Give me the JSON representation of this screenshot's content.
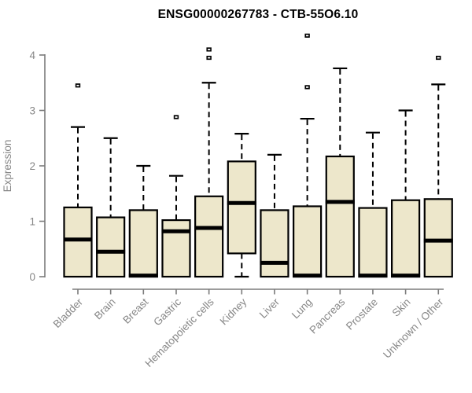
{
  "chart_data": {
    "type": "boxplot",
    "title": "ENSG00000267783 - CTB-55O6.10",
    "ylabel": "Expression",
    "ylim": [
      0,
      4
    ],
    "yticks": [
      0,
      1,
      2,
      3,
      4
    ],
    "grid": false,
    "legend": "none",
    "categories": [
      "Bladder",
      "Brain",
      "Breast",
      "Gastric",
      "Hematopoietic cells",
      "Kidney",
      "Liver",
      "Lung",
      "Pancreas",
      "Prostate",
      "Skin",
      "Unknown / Other"
    ],
    "boxes": [
      {
        "category": "Bladder",
        "whisker_low": 0,
        "q1": 0,
        "median": 0.67,
        "q3": 1.25,
        "whisker_high": 2.7,
        "outliers": [
          3.45
        ]
      },
      {
        "category": "Brain",
        "whisker_low": 0,
        "q1": 0,
        "median": 0.45,
        "q3": 1.07,
        "whisker_high": 2.5,
        "outliers": []
      },
      {
        "category": "Breast",
        "whisker_low": 0,
        "q1": 0,
        "median": 0.02,
        "q3": 1.2,
        "whisker_high": 2.0,
        "outliers": []
      },
      {
        "category": "Gastric",
        "whisker_low": 0,
        "q1": 0,
        "median": 0.82,
        "q3": 1.02,
        "whisker_high": 1.82,
        "outliers": [
          2.88
        ]
      },
      {
        "category": "Hematopoietic cells",
        "whisker_low": 0,
        "q1": 0,
        "median": 0.88,
        "q3": 1.45,
        "whisker_high": 3.5,
        "outliers": [
          3.95,
          4.1
        ]
      },
      {
        "category": "Kidney",
        "whisker_low": 0,
        "q1": 0.42,
        "median": 1.33,
        "q3": 2.08,
        "whisker_high": 2.58,
        "outliers": []
      },
      {
        "category": "Liver",
        "whisker_low": 0,
        "q1": 0,
        "median": 0.25,
        "q3": 1.2,
        "whisker_high": 2.2,
        "outliers": []
      },
      {
        "category": "Lung",
        "whisker_low": 0,
        "q1": 0,
        "median": 0.02,
        "q3": 1.27,
        "whisker_high": 2.85,
        "outliers": [
          3.42,
          4.35
        ]
      },
      {
        "category": "Pancreas",
        "whisker_low": 0,
        "q1": 0,
        "median": 1.35,
        "q3": 2.17,
        "whisker_high": 3.76,
        "outliers": []
      },
      {
        "category": "Prostate",
        "whisker_low": 0,
        "q1": 0,
        "median": 0.02,
        "q3": 1.24,
        "whisker_high": 2.6,
        "outliers": []
      },
      {
        "category": "Skin",
        "whisker_low": 0,
        "q1": 0,
        "median": 0.02,
        "q3": 1.38,
        "whisker_high": 3.0,
        "outliers": []
      },
      {
        "category": "Unknown / Other",
        "whisker_low": 0,
        "q1": 0,
        "median": 0.65,
        "q3": 1.4,
        "whisker_high": 3.47,
        "outliers": [
          3.95
        ]
      }
    ],
    "colors": {
      "box_fill": "#EDE7CB",
      "box_border": "#000000",
      "median": "#000000",
      "whisker": "#000000",
      "axis_line": "#7b7b7b",
      "axis_text": "#878787",
      "title": "#000000",
      "background": "#ffffff"
    }
  }
}
